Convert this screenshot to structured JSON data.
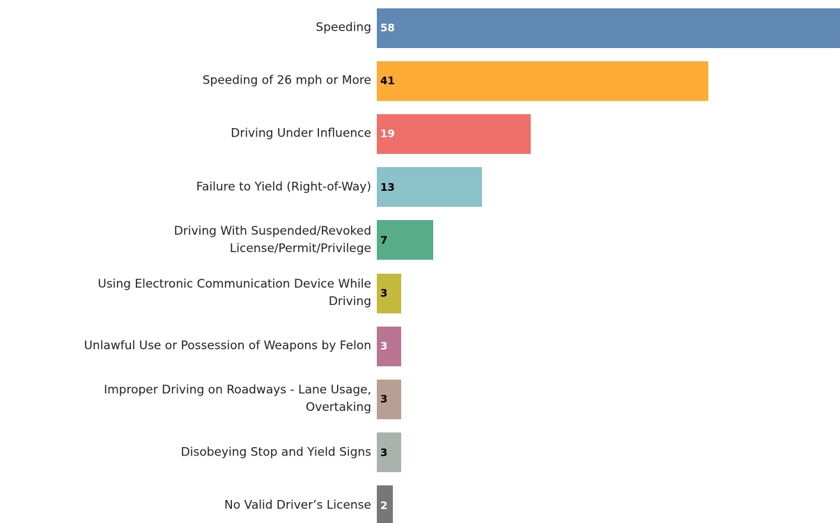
{
  "chart_data": {
    "type": "bar",
    "orientation": "horizontal",
    "categories": [
      "Speeding",
      "Speeding of 26 mph or More",
      "Driving Under Influence",
      "Failure to Yield (Right-of-Way)",
      "Driving With Suspended/Revoked\nLicense/Permit/Privilege",
      "Using Electronic Communication Device While\nDriving",
      "Unlawful Use or Possession of Weapons by Felon",
      "Improper Driving on Roadways - Lane Usage,\nOvertaking",
      "Disobeying Stop and Yield Signs",
      "No Valid Driver’s License"
    ],
    "values": [
      58,
      41,
      19,
      13,
      7,
      3,
      3,
      3,
      3,
      2
    ],
    "colors": [
      "#6088b4",
      "#fdac36",
      "#ef6f6a",
      "#8bc1c9",
      "#57ad8a",
      "#c4b93c",
      "#ba7593",
      "#b89e93",
      "#a9b3ae",
      "#777777"
    ],
    "value_label_colors": [
      "#ffffff",
      "#000000",
      "#ffffff",
      "#000000",
      "#000000",
      "#000000",
      "#ffffff",
      "#000000",
      "#000000",
      "#ffffff"
    ],
    "xlim": [
      0,
      57.3
    ]
  }
}
